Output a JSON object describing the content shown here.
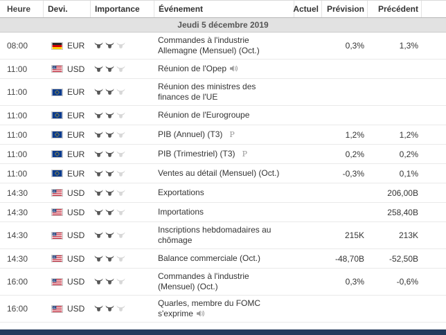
{
  "colors": {
    "footer_bar": "#233a5c",
    "date_row_bg": "#e2e2e2",
    "bull_filled": "#585858",
    "bull_empty": "#d8d8d8"
  },
  "table": {
    "headers": [
      "Heure",
      "Devi.",
      "Importance",
      "Événement",
      "Actuel",
      "Prévision",
      "Précédent"
    ],
    "date_header": "Jeudi 5 décembre 2019",
    "importance_max": 3,
    "rows": [
      {
        "time": "08:00",
        "flag": "de",
        "currency": "EUR",
        "importance": 2,
        "event": "Commandes à l'industrie Allemagne (Mensuel) (Oct.)",
        "icon": "",
        "actual": "",
        "forecast": "0,3%",
        "previous": "1,3%"
      },
      {
        "time": "11:00",
        "flag": "us",
        "currency": "USD",
        "importance": 2,
        "event": "Réunion de l'Opep",
        "icon": "speaker",
        "actual": "",
        "forecast": "",
        "previous": ""
      },
      {
        "time": "11:00",
        "flag": "eu",
        "currency": "EUR",
        "importance": 2,
        "event": "Réunion des ministres des finances de l'UE",
        "icon": "",
        "actual": "",
        "forecast": "",
        "previous": ""
      },
      {
        "time": "11:00",
        "flag": "eu",
        "currency": "EUR",
        "importance": 2,
        "event": "Réunion de l'Eurogroupe",
        "icon": "",
        "actual": "",
        "forecast": "",
        "previous": ""
      },
      {
        "time": "11:00",
        "flag": "eu",
        "currency": "EUR",
        "importance": 2,
        "event": "PIB (Annuel) (T3)",
        "icon": "prelim",
        "actual": "",
        "forecast": "1,2%",
        "previous": "1,2%"
      },
      {
        "time": "11:00",
        "flag": "eu",
        "currency": "EUR",
        "importance": 2,
        "event": "PIB (Trimestriel) (T3)",
        "icon": "prelim",
        "actual": "",
        "forecast": "0,2%",
        "previous": "0,2%"
      },
      {
        "time": "11:00",
        "flag": "eu",
        "currency": "EUR",
        "importance": 2,
        "event": "Ventes au détail (Mensuel) (Oct.)",
        "icon": "",
        "actual": "",
        "forecast": "-0,3%",
        "previous": "0,1%"
      },
      {
        "time": "14:30",
        "flag": "us",
        "currency": "USD",
        "importance": 2,
        "event": "Exportations",
        "icon": "",
        "actual": "",
        "forecast": "",
        "previous": "206,00B"
      },
      {
        "time": "14:30",
        "flag": "us",
        "currency": "USD",
        "importance": 2,
        "event": "Importations",
        "icon": "",
        "actual": "",
        "forecast": "",
        "previous": "258,40B"
      },
      {
        "time": "14:30",
        "flag": "us",
        "currency": "USD",
        "importance": 2,
        "event": "Inscriptions hebdomadaires au chômage",
        "icon": "",
        "actual": "",
        "forecast": "215K",
        "previous": "213K"
      },
      {
        "time": "14:30",
        "flag": "us",
        "currency": "USD",
        "importance": 2,
        "event": "Balance commerciale (Oct.)",
        "icon": "",
        "actual": "",
        "forecast": "-48,70B",
        "previous": "-52,50B"
      },
      {
        "time": "16:00",
        "flag": "us",
        "currency": "USD",
        "importance": 2,
        "event": "Commandes à l'industrie (Mensuel) (Oct.)",
        "icon": "",
        "actual": "",
        "forecast": "0,3%",
        "previous": "-0,6%"
      },
      {
        "time": "16:00",
        "flag": "us",
        "currency": "USD",
        "importance": 2,
        "event": "Quarles, membre du FOMC s'exprime",
        "icon": "speaker",
        "actual": "",
        "forecast": "",
        "previous": ""
      }
    ]
  }
}
